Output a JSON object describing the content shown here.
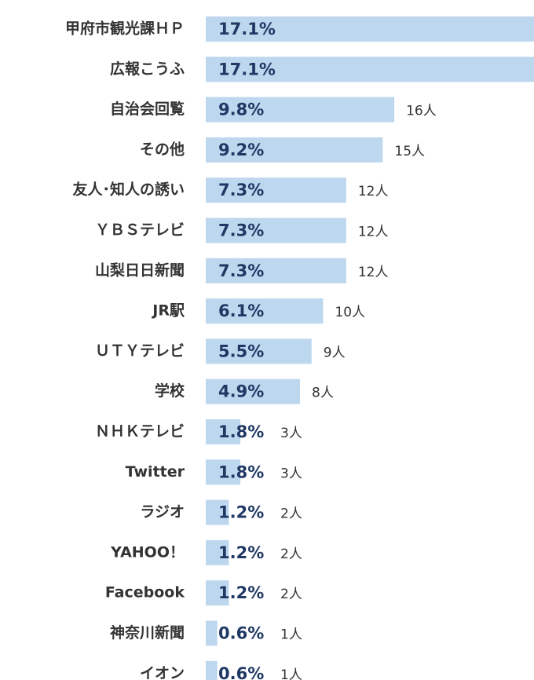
{
  "chart_data": {
    "type": "bar",
    "orientation": "horizontal",
    "categories": [
      "甲府市観光課ＨＰ",
      "広報こうふ",
      "自治会回覧",
      "その他",
      "友人･知人の誘い",
      "ＹＢＳテレビ",
      "山梨日日新聞",
      "JR駅",
      "ＵＴＹテレビ",
      "学校",
      "ＮＨＫテレビ",
      "Twitter",
      "ラジオ",
      "YAHOO！",
      "Facebook",
      "神奈川新聞",
      "イオン"
    ],
    "values": [
      17.1,
      17.1,
      9.8,
      9.2,
      7.3,
      7.3,
      7.3,
      6.1,
      5.5,
      4.9,
      1.8,
      1.8,
      1.2,
      1.2,
      1.2,
      0.6,
      0.6
    ],
    "value_labels": [
      "17.1%",
      "17.1%",
      "9.8%",
      "9.2%",
      "7.3%",
      "7.3%",
      "7.3%",
      "6.1%",
      "5.5%",
      "4.9%",
      "1.8%",
      "1.8%",
      "1.2%",
      "1.2%",
      "1.2%",
      "0.6%",
      "0.6%"
    ],
    "counts": [
      null,
      null,
      16,
      15,
      12,
      12,
      12,
      10,
      9,
      8,
      3,
      3,
      2,
      2,
      2,
      1,
      1
    ],
    "count_labels": [
      null,
      null,
      "16人",
      "15人",
      "12人",
      "12人",
      "12人",
      "10人",
      "9人",
      "8人",
      "3人",
      "3人",
      "2人",
      "2人",
      "2人",
      "1人",
      "1人"
    ],
    "color": "#bdd7ee"
  }
}
